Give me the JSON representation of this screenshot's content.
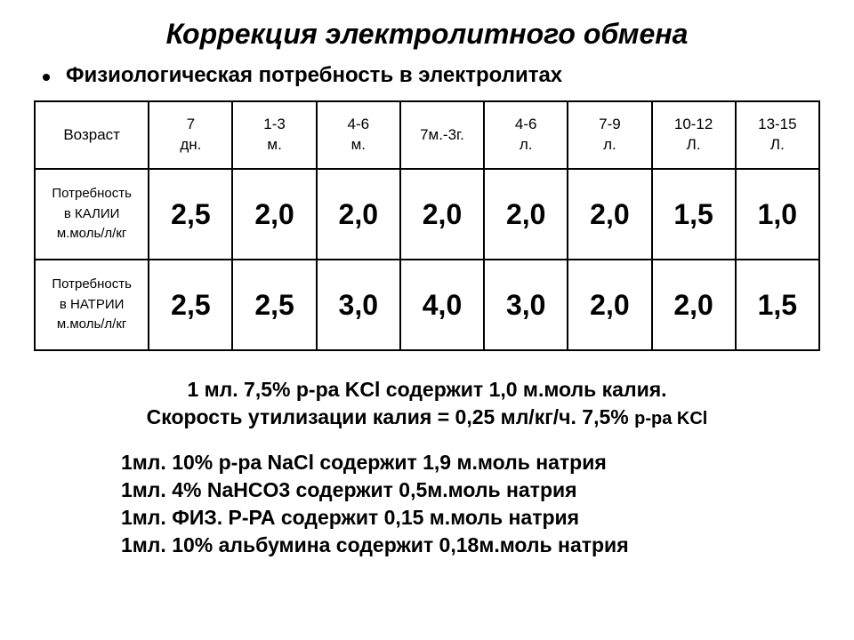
{
  "title": "Коррекция электролитного обмена",
  "subtitle": "Физиологическая потребность в электролитах",
  "table": {
    "header": {
      "age_label": "Возраст",
      "cols": [
        {
          "l1": "7",
          "l2": "дн."
        },
        {
          "l1": "1-3",
          "l2": "м."
        },
        {
          "l1": "4-6",
          "l2": "м."
        },
        {
          "l1": "7м.-3г.",
          "l2": ""
        },
        {
          "l1": "4-6",
          "l2": "л."
        },
        {
          "l1": "7-9",
          "l2": "л."
        },
        {
          "l1": "10-12",
          "l2": "Л."
        },
        {
          "l1": "13-15",
          "l2": "Л."
        }
      ]
    },
    "rows": [
      {
        "label_l1": "Потребность",
        "label_l2": "в КАЛИИ",
        "label_l3": "м.моль/л/кг",
        "values": [
          "2,5",
          "2,0",
          "2,0",
          "2,0",
          "2,0",
          "2,0",
          "1,5",
          "1,0"
        ]
      },
      {
        "label_l1": "Потребность",
        "label_l2": "в НАТРИИ",
        "label_l3": "м.моль/л/кг",
        "values": [
          "2,5",
          "2,5",
          "3,0",
          "4,0",
          "3,0",
          "2,0",
          "2,0",
          "1,5"
        ]
      }
    ]
  },
  "notes": {
    "kcl_line1": "1 мл. 7,5% р-ра KCl содержит 1,0 м.моль калия.",
    "kcl_line2a": "Скорость утилизации калия = 0,25 мл/кг/ч. 7,5% ",
    "kcl_line2b": "р-ра KCl",
    "list": [
      "1мл. 10% р-ра NaCl содержит 1,9 м.моль натрия",
      "1мл. 4% NaHCO3 содержит  0,5м.моль натрия",
      "1мл. ФИЗ. Р-РА содержит  0,15 м.моль натрия",
      "1мл. 10% альбумина содержит  0,18м.моль натрия"
    ]
  }
}
